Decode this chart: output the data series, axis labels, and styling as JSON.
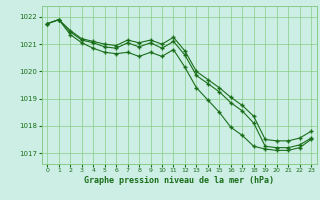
{
  "title": "Graphe pression niveau de la mer (hPa)",
  "bg_color": "#cceee4",
  "grid_color": "#88cc88",
  "line_color": "#1a6e1a",
  "xlim": [
    -0.5,
    23.5
  ],
  "ylim": [
    1016.6,
    1022.4
  ],
  "yticks": [
    1017,
    1018,
    1019,
    1020,
    1021,
    1022
  ],
  "xticks": [
    0,
    1,
    2,
    3,
    4,
    5,
    6,
    7,
    8,
    9,
    10,
    11,
    12,
    13,
    14,
    15,
    16,
    17,
    18,
    19,
    20,
    21,
    22,
    23
  ],
  "line1_x": [
    0,
    1,
    2,
    3,
    4,
    5,
    6,
    7,
    8,
    9,
    10,
    11,
    12,
    13,
    14,
    15,
    16,
    17,
    18,
    19,
    20,
    21,
    22,
    23
  ],
  "line1_y": [
    1021.75,
    1021.9,
    1021.45,
    1021.15,
    1021.05,
    1020.9,
    1020.85,
    1021.05,
    1020.9,
    1021.05,
    1020.85,
    1021.1,
    1020.6,
    1019.85,
    1019.55,
    1019.25,
    1018.85,
    1018.55,
    1018.1,
    1017.25,
    1017.2,
    1017.2,
    1017.3,
    1017.55
  ],
  "line2_x": [
    0,
    1,
    2,
    3,
    4,
    5,
    6,
    7,
    8,
    9,
    10,
    11,
    12,
    13,
    14,
    15,
    16,
    17,
    18,
    19,
    20,
    21,
    22,
    23
  ],
  "line2_y": [
    1021.75,
    1021.9,
    1021.35,
    1021.05,
    1020.85,
    1020.7,
    1020.65,
    1020.7,
    1020.55,
    1020.7,
    1020.55,
    1020.8,
    1020.15,
    1019.4,
    1018.95,
    1018.5,
    1017.95,
    1017.65,
    1017.25,
    1017.15,
    1017.1,
    1017.1,
    1017.2,
    1017.5
  ],
  "line3_x": [
    0,
    1,
    2,
    3,
    4,
    5,
    6,
    7,
    8,
    9,
    10,
    11,
    12,
    13,
    14,
    15,
    16,
    17,
    18,
    19,
    20,
    21,
    22,
    23
  ],
  "line3_y": [
    1021.75,
    1021.9,
    1021.5,
    1021.2,
    1021.1,
    1021.0,
    1020.95,
    1021.15,
    1021.05,
    1021.15,
    1021.0,
    1021.25,
    1020.75,
    1020.0,
    1019.7,
    1019.4,
    1019.05,
    1018.75,
    1018.35,
    1017.5,
    1017.45,
    1017.45,
    1017.55,
    1017.8
  ]
}
